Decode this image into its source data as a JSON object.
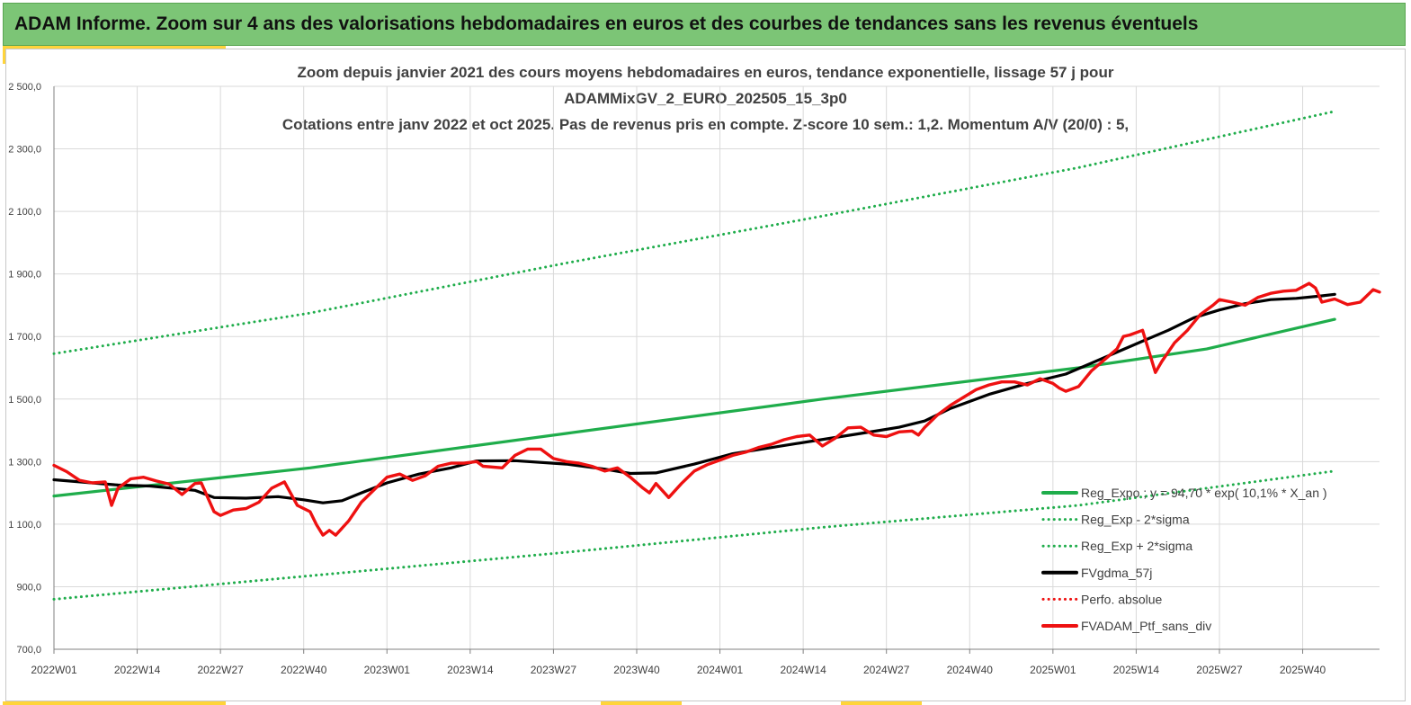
{
  "banner": {
    "title": "ADAM Informe. Zoom sur 4 ans des valorisations hebdomadaires en euros et des courbes de tendances sans les revenus éventuels"
  },
  "colors": {
    "banner_bg": "#7cc576",
    "accent_yellow": "#ffd43a",
    "regression_green": "#1fad4b",
    "fv_black": "#000000",
    "ptf_red": "#ee1111"
  },
  "chart_data": {
    "type": "line",
    "title": [
      "Zoom depuis janvier 2021 des cours moyens hebdomadaires  en euros, tendance exponentielle, lissage 57 j pour",
      "ADAMMixGV_2_EURO_202505_15_3p0",
      "Cotations  entre janv 2022 et oct 2025. Pas de revenus pris en compte. Z-score 10 sem.: 1,2. Momentum A/V (20/0) : 5,"
    ],
    "xlabel": "",
    "ylabel": "",
    "ylim": [
      700,
      2500
    ],
    "yticks": [
      "700,0",
      "900,0",
      "1 100,0",
      "1 300,0",
      "1 500,0",
      "1 700,0",
      "1 900,0",
      "2 100,0",
      "2 300,0",
      "2 500,0"
    ],
    "ytick_values": [
      700,
      900,
      1100,
      1300,
      1500,
      1700,
      1900,
      2100,
      2300,
      2500
    ],
    "xlim": [
      0,
      200
    ],
    "xticks": [
      "2022W01",
      "2022W14",
      "2022W27",
      "2022W40",
      "2023W01",
      "2023W14",
      "2023W27",
      "2023W40",
      "2024W01",
      "2024W14",
      "2024W27",
      "2024W40",
      "2025W01",
      "2025W14",
      "2025W27",
      "2025W40"
    ],
    "xtick_positions": [
      0,
      13,
      26,
      39,
      52,
      65,
      78,
      91,
      104,
      117,
      130,
      143,
      156,
      169,
      182,
      195
    ],
    "grid": true,
    "legend_position": "bottom-right",
    "series": [
      {
        "name": "Reg_Expo ; y = 94,70 * exp( 10,1% *  X_an )",
        "style": "solid",
        "color": "#1fad4b",
        "points": [
          [
            0,
            1190
          ],
          [
            40,
            1280
          ],
          [
            80,
            1390
          ],
          [
            120,
            1500
          ],
          [
            160,
            1600
          ],
          [
            180,
            1660
          ],
          [
            200,
            1755
          ]
        ]
      },
      {
        "name": "Reg_Exp - 2*sigma",
        "style": "dotted",
        "color": "#1fad4b",
        "points": [
          [
            0,
            860
          ],
          [
            40,
            935
          ],
          [
            80,
            1010
          ],
          [
            120,
            1090
          ],
          [
            160,
            1160
          ],
          [
            200,
            1270
          ]
        ]
      },
      {
        "name": "Reg_Exp + 2*sigma",
        "style": "dotted",
        "color": "#1fad4b",
        "points": [
          [
            0,
            1645
          ],
          [
            40,
            1775
          ],
          [
            80,
            1935
          ],
          [
            120,
            2085
          ],
          [
            160,
            2240
          ],
          [
            200,
            2420
          ]
        ]
      },
      {
        "name": "FVgdma_57j",
        "style": "solid",
        "color": "#000000",
        "points": [
          [
            0,
            1242
          ],
          [
            10,
            1225
          ],
          [
            15,
            1222
          ],
          [
            22,
            1208
          ],
          [
            25,
            1185
          ],
          [
            30,
            1183
          ],
          [
            35,
            1188
          ],
          [
            39,
            1178
          ],
          [
            42,
            1168
          ],
          [
            45,
            1175
          ],
          [
            48,
            1200
          ],
          [
            52,
            1232
          ],
          [
            57,
            1260
          ],
          [
            62,
            1280
          ],
          [
            66,
            1302
          ],
          [
            72,
            1303
          ],
          [
            80,
            1292
          ],
          [
            86,
            1276
          ],
          [
            90,
            1262
          ],
          [
            94,
            1264
          ],
          [
            100,
            1292
          ],
          [
            106,
            1325
          ],
          [
            116,
            1358
          ],
          [
            126,
            1390
          ],
          [
            132,
            1410
          ],
          [
            136,
            1430
          ],
          [
            140,
            1470
          ],
          [
            146,
            1515
          ],
          [
            152,
            1550
          ],
          [
            158,
            1580
          ],
          [
            162,
            1615
          ],
          [
            166,
            1650
          ],
          [
            170,
            1685
          ],
          [
            174,
            1720
          ],
          [
            178,
            1760
          ],
          [
            182,
            1785
          ],
          [
            186,
            1805
          ],
          [
            190,
            1818
          ],
          [
            194,
            1822
          ],
          [
            198,
            1830
          ],
          [
            200,
            1835
          ]
        ]
      },
      {
        "name": "Perfo. absolue",
        "style": "dotted",
        "color": "#ee1111",
        "points": []
      },
      {
        "name": "FVADAM_Ptf_sans_div",
        "style": "solid",
        "color": "#ee1111",
        "points": [
          [
            0,
            1288
          ],
          [
            2,
            1268
          ],
          [
            4,
            1240
          ],
          [
            6,
            1232
          ],
          [
            8,
            1235
          ],
          [
            9,
            1160
          ],
          [
            10,
            1215
          ],
          [
            12,
            1245
          ],
          [
            14,
            1250
          ],
          [
            16,
            1238
          ],
          [
            18,
            1228
          ],
          [
            20,
            1195
          ],
          [
            22,
            1230
          ],
          [
            23,
            1232
          ],
          [
            25,
            1140
          ],
          [
            26,
            1128
          ],
          [
            28,
            1145
          ],
          [
            30,
            1150
          ],
          [
            32,
            1170
          ],
          [
            34,
            1215
          ],
          [
            36,
            1235
          ],
          [
            38,
            1160
          ],
          [
            40,
            1140
          ],
          [
            41,
            1098
          ],
          [
            42,
            1065
          ],
          [
            43,
            1080
          ],
          [
            44,
            1065
          ],
          [
            46,
            1110
          ],
          [
            48,
            1170
          ],
          [
            50,
            1210
          ],
          [
            52,
            1250
          ],
          [
            54,
            1260
          ],
          [
            56,
            1240
          ],
          [
            58,
            1255
          ],
          [
            60,
            1285
          ],
          [
            62,
            1295
          ],
          [
            64,
            1295
          ],
          [
            66,
            1300
          ],
          [
            67,
            1285
          ],
          [
            70,
            1280
          ],
          [
            72,
            1320
          ],
          [
            74,
            1340
          ],
          [
            76,
            1340
          ],
          [
            78,
            1310
          ],
          [
            80,
            1300
          ],
          [
            82,
            1295
          ],
          [
            84,
            1285
          ],
          [
            86,
            1270
          ],
          [
            88,
            1280
          ],
          [
            90,
            1250
          ],
          [
            92,
            1215
          ],
          [
            93,
            1200
          ],
          [
            94,
            1230
          ],
          [
            96,
            1185
          ],
          [
            98,
            1230
          ],
          [
            100,
            1270
          ],
          [
            102,
            1290
          ],
          [
            104,
            1305
          ],
          [
            106,
            1320
          ],
          [
            108,
            1330
          ],
          [
            110,
            1345
          ],
          [
            112,
            1355
          ],
          [
            114,
            1370
          ],
          [
            116,
            1380
          ],
          [
            118,
            1385
          ],
          [
            120,
            1350
          ],
          [
            122,
            1375
          ],
          [
            124,
            1408
          ],
          [
            126,
            1410
          ],
          [
            128,
            1385
          ],
          [
            130,
            1380
          ],
          [
            132,
            1395
          ],
          [
            134,
            1398
          ],
          [
            135,
            1385
          ],
          [
            136,
            1410
          ],
          [
            138,
            1450
          ],
          [
            140,
            1480
          ],
          [
            142,
            1505
          ],
          [
            144,
            1530
          ],
          [
            146,
            1545
          ],
          [
            148,
            1555
          ],
          [
            150,
            1555
          ],
          [
            152,
            1545
          ],
          [
            154,
            1565
          ],
          [
            156,
            1550
          ],
          [
            157,
            1535
          ],
          [
            158,
            1525
          ],
          [
            160,
            1540
          ],
          [
            162,
            1590
          ],
          [
            164,
            1625
          ],
          [
            166,
            1660
          ],
          [
            167,
            1700
          ],
          [
            168,
            1705
          ],
          [
            170,
            1720
          ],
          [
            172,
            1585
          ],
          [
            173,
            1620
          ],
          [
            175,
            1680
          ],
          [
            177,
            1720
          ],
          [
            179,
            1770
          ],
          [
            181,
            1800
          ],
          [
            182,
            1818
          ],
          [
            184,
            1810
          ],
          [
            186,
            1800
          ],
          [
            188,
            1825
          ],
          [
            190,
            1838
          ],
          [
            192,
            1845
          ],
          [
            194,
            1848
          ],
          [
            196,
            1870
          ],
          [
            197,
            1855
          ],
          [
            198,
            1810
          ],
          [
            200,
            1820
          ],
          [
            202,
            1802
          ],
          [
            204,
            1810
          ],
          [
            206,
            1850
          ],
          [
            207,
            1842
          ]
        ]
      }
    ]
  }
}
